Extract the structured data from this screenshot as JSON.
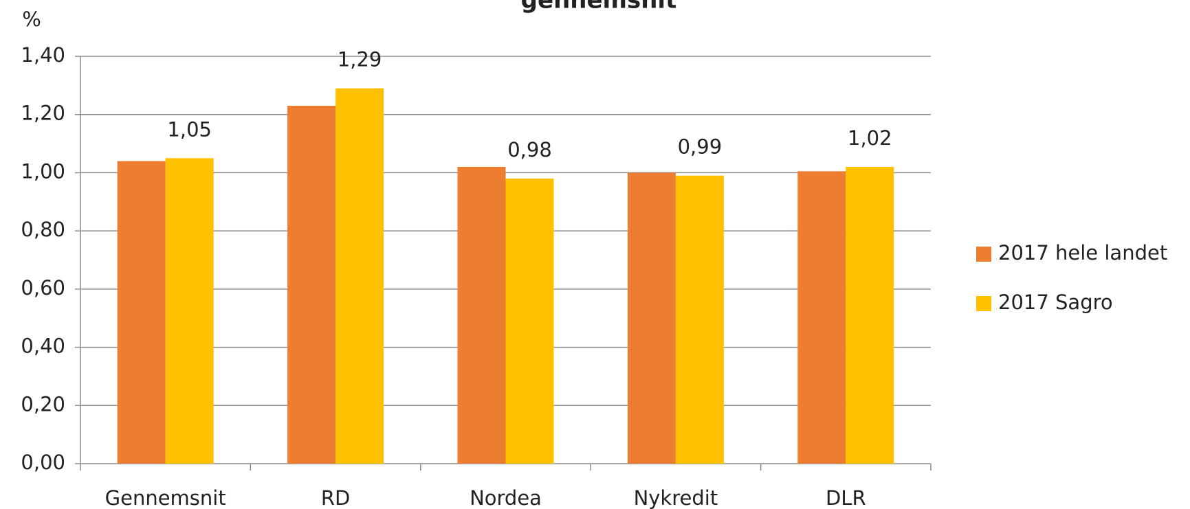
{
  "chart_data": {
    "type": "bar",
    "title": "gennemsnit",
    "y_label": "%",
    "categories": [
      "Gennemsnit",
      "RD",
      "Nordea",
      "Nykredit",
      "DLR"
    ],
    "series": [
      {
        "name": "2017 hele landet",
        "color": "#ed7d31",
        "values": [
          1.04,
          1.23,
          1.02,
          1.0,
          1.005
        ]
      },
      {
        "name": "2017 Sagro",
        "color": "#ffc000",
        "values": [
          1.05,
          1.29,
          0.98,
          0.99,
          1.02
        ],
        "value_labels": [
          "1,05",
          "1,29",
          "0,98",
          "0,99",
          "1,02"
        ]
      }
    ],
    "ylim": [
      0,
      1.4
    ],
    "yticks": [
      {
        "value": 0,
        "label": "0,00"
      },
      {
        "value": 0.2,
        "label": "0,20"
      },
      {
        "value": 0.4,
        "label": "0,40"
      },
      {
        "value": 0.6,
        "label": "0,60"
      },
      {
        "value": 0.8,
        "label": "0,80"
      },
      {
        "value": 1.0,
        "label": "1,00"
      },
      {
        "value": 1.2,
        "label": "1,20"
      },
      {
        "value": 1.4,
        "label": "1,40"
      }
    ],
    "grid": true,
    "legend": "right"
  }
}
